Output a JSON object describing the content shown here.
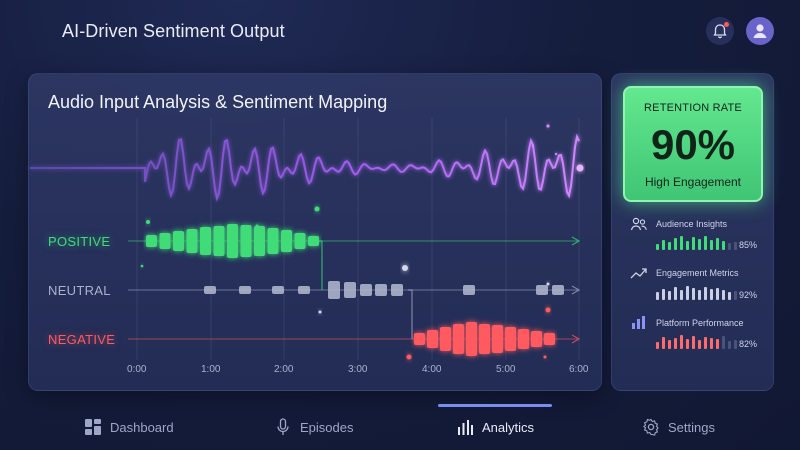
{
  "header": {
    "app_title": "AI-Driven Sentiment Output",
    "icons": [
      "audio-wave-icon",
      "bell-icon",
      "user-icon"
    ]
  },
  "main": {
    "title": "Audio Input Analysis & Sentiment Mapping",
    "lanes": [
      "POSITIVE",
      "NEUTRAL",
      "NEGATIVE"
    ],
    "time_ticks": [
      "0:00",
      "1:00",
      "2:00",
      "3:00",
      "4:00",
      "5:00",
      "6:00"
    ],
    "colors": {
      "positive": "#3fdc77",
      "neutral": "#a4abc4",
      "negative": "#ff5a5f",
      "wave": "#b86bff"
    }
  },
  "retention": {
    "label": "RETENTION RATE",
    "value": "90%",
    "caption": "High Engagement"
  },
  "metrics": [
    {
      "title": "Audience Insights",
      "percent": "85%",
      "icon": "people-icon",
      "color": "#3fdc77",
      "level": 0.85
    },
    {
      "title": "Engagement Metrics",
      "percent": "92%",
      "icon": "trend-up-icon",
      "color": "#c9cfe4",
      "level": 0.92
    },
    {
      "title": "Platform Performance",
      "percent": "82%",
      "icon": "bar-chart-icon",
      "color": "#ff6a6a",
      "level": 0.82
    }
  ],
  "nav": {
    "items": [
      {
        "label": "Dashboard",
        "icon": "dashboard-icon"
      },
      {
        "label": "Episodes",
        "icon": "microphone-icon"
      },
      {
        "label": "Analytics",
        "icon": "analytics-icon",
        "active": true
      },
      {
        "label": "Settings",
        "icon": "gear-icon"
      }
    ]
  }
}
